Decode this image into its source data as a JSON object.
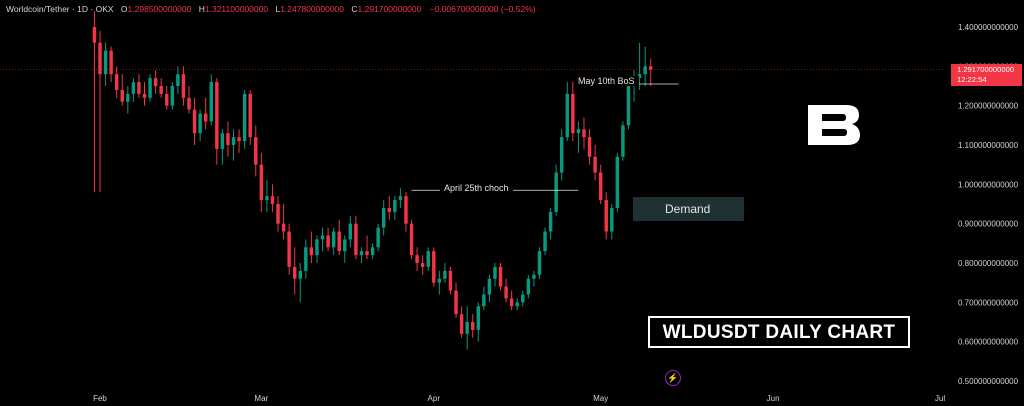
{
  "header": {
    "symbol": "Worldcoin/Tether · 1D · OKX",
    "o_label": "O",
    "o_value": "1.298500000000",
    "h_label": "H",
    "h_value": "1.321100000000",
    "l_label": "L",
    "l_value": "1.247800000000",
    "c_label": "C",
    "c_value": "1.291700000000",
    "change": "−0.006700000000 (−0.52%)"
  },
  "price_tag": {
    "price": "1.291700000000",
    "countdown": "12:22:54"
  },
  "annotations": {
    "choch": "April 25th choch",
    "bos": "May 10th BoS",
    "demand": "Demand",
    "title": "WLDUSDT DAILY CHART"
  },
  "colors": {
    "up": "#089981",
    "down": "#f23645",
    "background": "#000000",
    "demand_zone": "#1f3133"
  },
  "icons": {
    "logo": "brand-b-logo",
    "bolt": "lightning-icon"
  },
  "chart_data": {
    "type": "candlestick",
    "title": "WLDUSDT DAILY CHART",
    "ylim": [
      0.5,
      1.44
    ],
    "y_ticks": [
      "1.400000000000",
      "1.300000000000",
      "1.200000000000",
      "1.100000000000",
      "1.000000000000",
      "0.900000000000",
      "0.800000000000",
      "0.700000000000",
      "0.600000000000",
      "0.500000000000"
    ],
    "y_tick_values": [
      1.4,
      1.3,
      1.2,
      1.1,
      1.0,
      0.9,
      0.8,
      0.7,
      0.6,
      0.5
    ],
    "x_ticks": [
      "Feb",
      "Mar",
      "Apr",
      "May",
      "Jun",
      "Jul"
    ],
    "x_tick_dates": [
      "2024-02-01",
      "2024-03-01",
      "2024-04-01",
      "2024-05-01",
      "2024-06-01",
      "2024-07-01"
    ],
    "first_date": "2024-01-31",
    "last_price": 1.2917,
    "choch_level": 0.985,
    "bos_level": 1.255,
    "demand_zone": [
      0.91,
      0.97
    ],
    "candles": [
      [
        1.4,
        1.44,
        0.98,
        1.36
      ],
      [
        1.36,
        1.39,
        0.98,
        1.28
      ],
      [
        1.28,
        1.36,
        1.25,
        1.34
      ],
      [
        1.34,
        1.35,
        1.26,
        1.28
      ],
      [
        1.28,
        1.3,
        1.22,
        1.24
      ],
      [
        1.24,
        1.28,
        1.2,
        1.21
      ],
      [
        1.21,
        1.25,
        1.18,
        1.23
      ],
      [
        1.23,
        1.27,
        1.21,
        1.26
      ],
      [
        1.26,
        1.28,
        1.22,
        1.23
      ],
      [
        1.23,
        1.26,
        1.2,
        1.22
      ],
      [
        1.22,
        1.28,
        1.21,
        1.27
      ],
      [
        1.27,
        1.29,
        1.23,
        1.25
      ],
      [
        1.25,
        1.27,
        1.22,
        1.23
      ],
      [
        1.23,
        1.25,
        1.19,
        1.2
      ],
      [
        1.2,
        1.26,
        1.19,
        1.25
      ],
      [
        1.25,
        1.3,
        1.23,
        1.28
      ],
      [
        1.28,
        1.3,
        1.2,
        1.22
      ],
      [
        1.22,
        1.25,
        1.18,
        1.19
      ],
      [
        1.19,
        1.22,
        1.1,
        1.13
      ],
      [
        1.13,
        1.19,
        1.11,
        1.18
      ],
      [
        1.18,
        1.22,
        1.14,
        1.16
      ],
      [
        1.16,
        1.28,
        1.15,
        1.26
      ],
      [
        1.26,
        1.27,
        1.05,
        1.09
      ],
      [
        1.09,
        1.14,
        1.05,
        1.13
      ],
      [
        1.13,
        1.16,
        1.07,
        1.1
      ],
      [
        1.1,
        1.14,
        1.06,
        1.12
      ],
      [
        1.12,
        1.14,
        1.08,
        1.11
      ],
      [
        1.11,
        1.24,
        1.09,
        1.23
      ],
      [
        1.23,
        1.24,
        1.1,
        1.12
      ],
      [
        1.12,
        1.15,
        1.02,
        1.05
      ],
      [
        1.05,
        1.08,
        0.93,
        0.96
      ],
      [
        0.96,
        1.01,
        0.93,
        0.97
      ],
      [
        0.97,
        1.0,
        0.93,
        0.95
      ],
      [
        0.95,
        0.97,
        0.88,
        0.9
      ],
      [
        0.9,
        0.95,
        0.86,
        0.88
      ],
      [
        0.88,
        0.9,
        0.77,
        0.79
      ],
      [
        0.79,
        0.84,
        0.72,
        0.76
      ],
      [
        0.76,
        0.8,
        0.7,
        0.78
      ],
      [
        0.78,
        0.86,
        0.76,
        0.84
      ],
      [
        0.84,
        0.88,
        0.8,
        0.82
      ],
      [
        0.82,
        0.87,
        0.8,
        0.86
      ],
      [
        0.86,
        0.89,
        0.83,
        0.87
      ],
      [
        0.87,
        0.89,
        0.83,
        0.84
      ],
      [
        0.84,
        0.89,
        0.82,
        0.88
      ],
      [
        0.88,
        0.91,
        0.82,
        0.83
      ],
      [
        0.83,
        0.87,
        0.8,
        0.86
      ],
      [
        0.86,
        0.92,
        0.84,
        0.9
      ],
      [
        0.9,
        0.92,
        0.81,
        0.82
      ],
      [
        0.82,
        0.84,
        0.8,
        0.83
      ],
      [
        0.83,
        0.87,
        0.81,
        0.82
      ],
      [
        0.82,
        0.85,
        0.81,
        0.84
      ],
      [
        0.84,
        0.9,
        0.83,
        0.89
      ],
      [
        0.89,
        0.96,
        0.87,
        0.94
      ],
      [
        0.94,
        0.97,
        0.91,
        0.93
      ],
      [
        0.93,
        0.97,
        0.91,
        0.96
      ],
      [
        0.96,
        0.99,
        0.94,
        0.97
      ],
      [
        0.97,
        0.98,
        0.88,
        0.9
      ],
      [
        0.9,
        0.91,
        0.81,
        0.82
      ],
      [
        0.82,
        0.84,
        0.78,
        0.8
      ],
      [
        0.8,
        0.82,
        0.77,
        0.79
      ],
      [
        0.79,
        0.84,
        0.78,
        0.83
      ],
      [
        0.83,
        0.84,
        0.74,
        0.75
      ],
      [
        0.75,
        0.78,
        0.72,
        0.76
      ],
      [
        0.76,
        0.8,
        0.75,
        0.78
      ],
      [
        0.78,
        0.79,
        0.72,
        0.73
      ],
      [
        0.73,
        0.75,
        0.66,
        0.67
      ],
      [
        0.67,
        0.69,
        0.61,
        0.62
      ],
      [
        0.62,
        0.69,
        0.58,
        0.65
      ],
      [
        0.65,
        0.67,
        0.61,
        0.63
      ],
      [
        0.63,
        0.7,
        0.6,
        0.69
      ],
      [
        0.69,
        0.74,
        0.68,
        0.72
      ],
      [
        0.72,
        0.77,
        0.7,
        0.76
      ],
      [
        0.76,
        0.8,
        0.74,
        0.79
      ],
      [
        0.79,
        0.8,
        0.73,
        0.74
      ],
      [
        0.74,
        0.76,
        0.7,
        0.71
      ],
      [
        0.71,
        0.73,
        0.68,
        0.69
      ],
      [
        0.69,
        0.71,
        0.68,
        0.7
      ],
      [
        0.7,
        0.73,
        0.69,
        0.72
      ],
      [
        0.72,
        0.77,
        0.71,
        0.76
      ],
      [
        0.76,
        0.78,
        0.74,
        0.77
      ],
      [
        0.77,
        0.84,
        0.76,
        0.83
      ],
      [
        0.83,
        0.89,
        0.82,
        0.88
      ],
      [
        0.88,
        0.94,
        0.86,
        0.93
      ],
      [
        0.93,
        1.05,
        0.92,
        1.03
      ],
      [
        1.03,
        1.14,
        1.01,
        1.12
      ],
      [
        1.12,
        1.26,
        1.11,
        1.23
      ],
      [
        1.23,
        1.26,
        1.11,
        1.13
      ],
      [
        1.13,
        1.16,
        1.08,
        1.14
      ],
      [
        1.14,
        1.17,
        1.09,
        1.12
      ],
      [
        1.12,
        1.14,
        1.05,
        1.07
      ],
      [
        1.07,
        1.1,
        1.01,
        1.03
      ],
      [
        1.03,
        1.05,
        0.95,
        0.96
      ],
      [
        0.96,
        0.98,
        0.86,
        0.88
      ],
      [
        0.88,
        0.95,
        0.86,
        0.94
      ],
      [
        0.94,
        1.08,
        0.93,
        1.07
      ],
      [
        1.07,
        1.16,
        1.06,
        1.15
      ],
      [
        1.15,
        1.26,
        1.14,
        1.25
      ],
      [
        1.25,
        1.29,
        1.21,
        1.27
      ],
      [
        1.27,
        1.36,
        1.24,
        1.28
      ],
      [
        1.28,
        1.35,
        1.25,
        1.3
      ],
      [
        1.3,
        1.32,
        1.25,
        1.2917
      ]
    ]
  }
}
